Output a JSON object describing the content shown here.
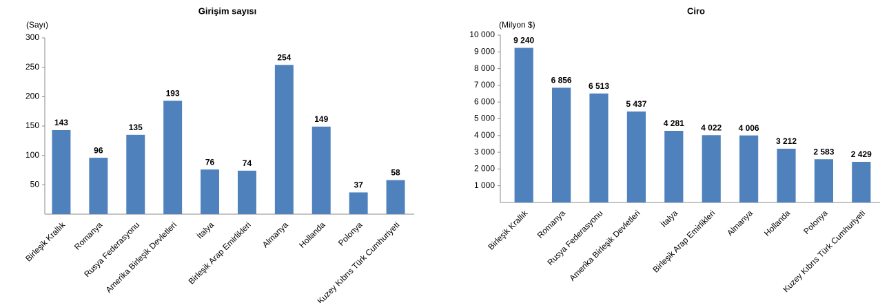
{
  "chart_data": [
    {
      "type": "bar",
      "title": "Girişim sayısı",
      "y_label": "(Sayı)",
      "categories": [
        "Birleşik Krallık",
        "Romanya",
        "Rusya Federasyonu",
        "Amerika Birleşik Devletleri",
        "İtalya",
        "Birleşik Arap Emirlikleri",
        "Almanya",
        "Hollanda",
        "Polonya",
        "Kuzey Kıbrıs Türk Cumhuriyeti"
      ],
      "values": [
        143,
        96,
        135,
        193,
        76,
        74,
        254,
        149,
        37,
        58
      ],
      "color": "#4f81bd",
      "ylim": [
        0,
        300
      ],
      "yticks": [
        50,
        100,
        150,
        200,
        250,
        300
      ]
    },
    {
      "type": "bar",
      "title": "Ciro",
      "y_label": "(Milyon $)",
      "categories": [
        "Birleşik Krallık",
        "Romanya",
        "Rusya Federasyonu",
        "Amerika Birleşik Devletleri",
        "İtalya",
        "Birleşik Arap Emirlikleri",
        "Almanya",
        "Hollanda",
        "Polonya",
        "Kuzey Kıbrıs Türk Cumhuriyeti"
      ],
      "values": [
        9240,
        6856,
        6513,
        5437,
        4281,
        4022,
        4006,
        3212,
        2583,
        2429
      ],
      "value_labels": [
        "9 240",
        "6 856",
        "6 513",
        "5 437",
        "4 281",
        "4 022",
        "4 006",
        "3 212",
        "2 583",
        "2 429"
      ],
      "color": "#4f81bd",
      "ylim": [
        0,
        10000
      ],
      "yticks": [
        {
          "value": 1000,
          "label": "1 000"
        },
        {
          "value": 2000,
          "label": "2 000"
        },
        {
          "value": 3000,
          "label": "3 000"
        },
        {
          "value": 4000,
          "label": "4 000"
        },
        {
          "value": 5000,
          "label": "5 000"
        },
        {
          "value": 6000,
          "label": "6 000"
        },
        {
          "value": 7000,
          "label": "7 000"
        },
        {
          "value": 8000,
          "label": "8 000"
        },
        {
          "value": 9000,
          "label": "9 000"
        },
        {
          "value": 10000,
          "label": "10 000"
        }
      ]
    }
  ]
}
